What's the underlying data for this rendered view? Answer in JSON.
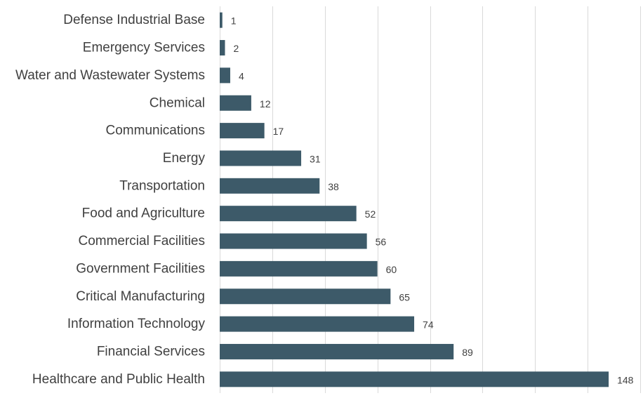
{
  "chart_data": {
    "type": "bar",
    "orientation": "horizontal",
    "categories": [
      "Defense Industrial Base",
      "Emergency Services",
      "Water and Wastewater Systems",
      "Chemical",
      "Communications",
      "Energy",
      "Transportation",
      "Food and Agriculture",
      "Commercial Facilities",
      "Government Facilities",
      "Critical Manufacturing",
      "Information Technology",
      "Financial Services",
      "Healthcare and Public Health"
    ],
    "values": [
      1,
      2,
      4,
      12,
      17,
      31,
      38,
      52,
      56,
      60,
      65,
      74,
      89,
      148
    ],
    "title": "",
    "xlabel": "",
    "ylabel": "",
    "xlim": [
      0,
      160
    ],
    "grid": true,
    "data_labels": true,
    "bar_color": "#3d5a69"
  }
}
